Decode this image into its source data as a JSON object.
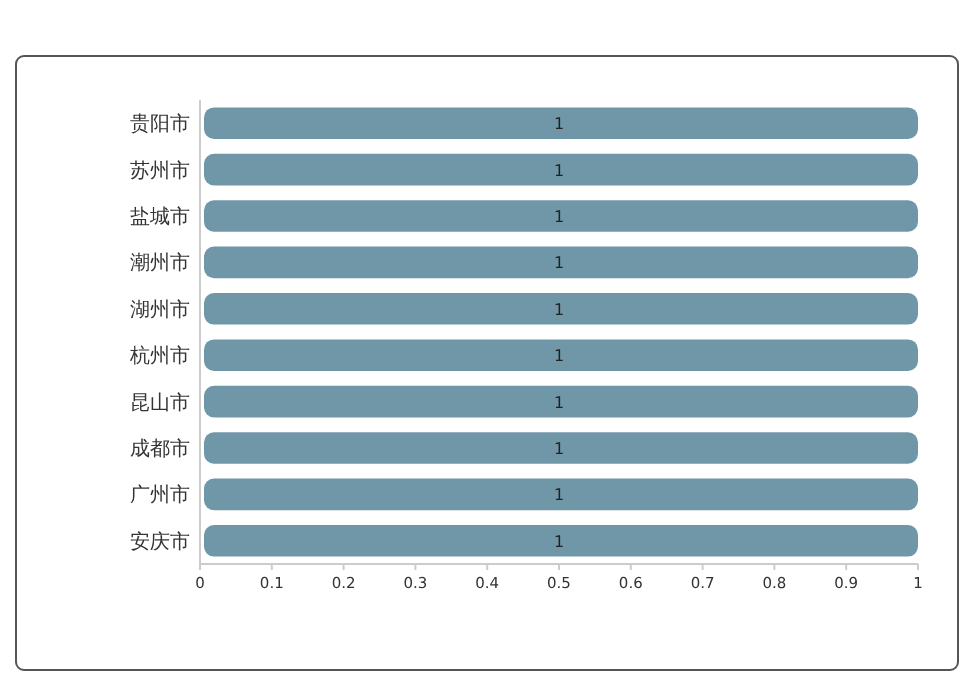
{
  "chart_data": {
    "type": "bar",
    "orientation": "horizontal",
    "categories": [
      "贵阳市",
      "苏州市",
      "盐城市",
      "潮州市",
      "湖州市",
      "杭州市",
      "昆山市",
      "成都市",
      "广州市",
      "安庆市"
    ],
    "values": [
      1,
      1,
      1,
      1,
      1,
      1,
      1,
      1,
      1,
      1
    ],
    "color": "#6f97a8",
    "data_labels": true,
    "xlim": [
      0,
      1
    ],
    "xticks": [
      0,
      0.1,
      0.2,
      0.3,
      0.4,
      0.5,
      0.6,
      0.7,
      0.8,
      0.9,
      1
    ]
  }
}
